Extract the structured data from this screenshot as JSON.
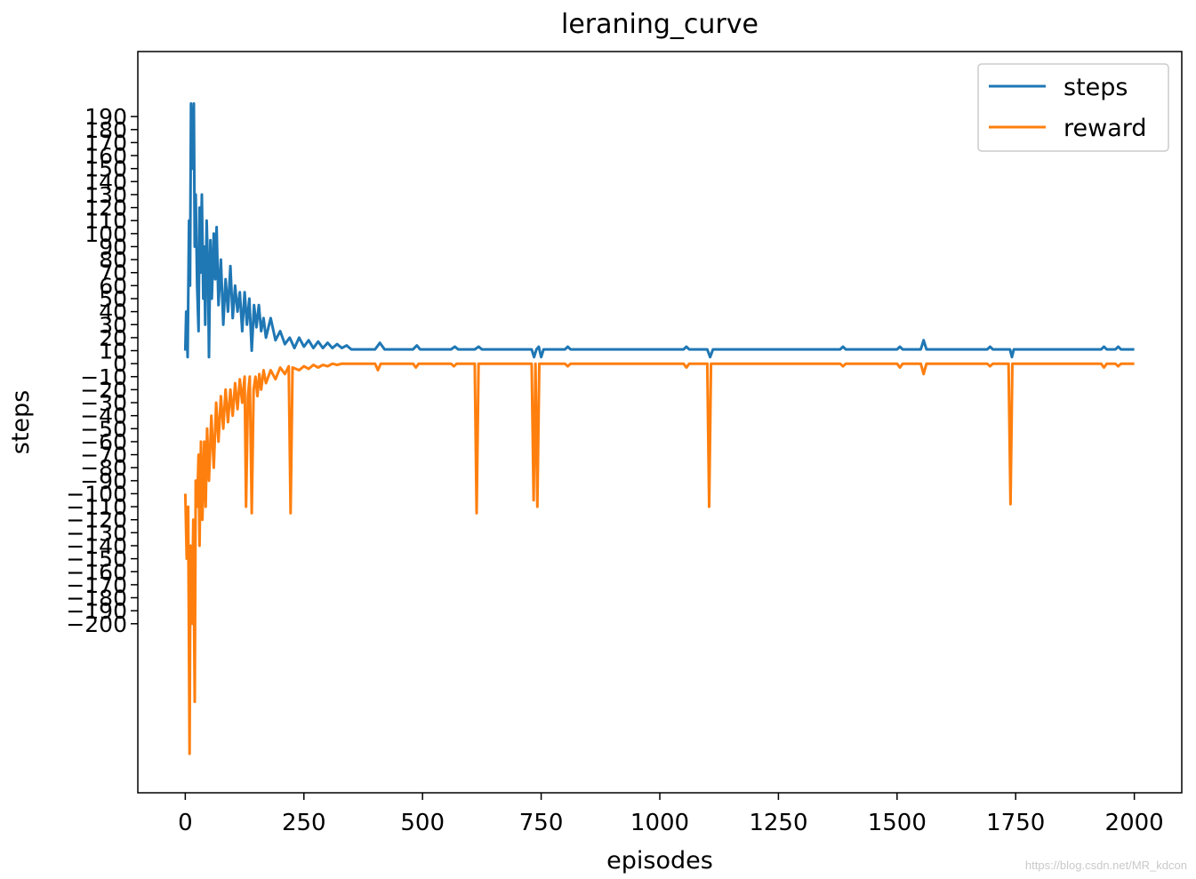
{
  "chart_data": {
    "type": "line",
    "title": "leraning_curve",
    "xlabel": "episodes",
    "ylabel": "steps",
    "xlim": [
      -100,
      2100
    ],
    "ylim": [
      -330,
      240
    ],
    "xticks": [
      0,
      250,
      500,
      750,
      1000,
      1250,
      1500,
      1750,
      2000
    ],
    "xtick_labels": [
      "0",
      "250",
      "500",
      "750",
      "1000",
      "1250",
      "1500",
      "1750",
      "2000"
    ],
    "yticks": [
      190,
      180,
      170,
      160,
      150,
      140,
      130,
      120,
      110,
      100,
      90,
      80,
      70,
      60,
      50,
      40,
      30,
      20,
      10,
      0,
      -10,
      -20,
      -30,
      -40,
      -50,
      -60,
      -70,
      -80,
      -90,
      -100,
      -110,
      -120,
      -130,
      -140,
      -150,
      -160,
      -170,
      -180,
      -190,
      -200
    ],
    "ytick_labels": [
      "190",
      "180",
      "170",
      "160",
      "150",
      "140",
      "130",
      "120",
      "110",
      "100",
      "90",
      "80",
      "70",
      "60",
      "50",
      "40",
      "30",
      "20",
      "10",
      "0",
      "−10",
      "−20",
      "−30",
      "−40",
      "−50",
      "−60",
      "−70",
      "−80",
      "−90",
      "−100",
      "−110",
      "−120",
      "−130",
      "−140",
      "−150",
      "−160",
      "−170",
      "−180",
      "−190",
      "−200"
    ],
    "grid": false,
    "legend_position": "top-right",
    "series": [
      {
        "name": "steps",
        "color": "#1f77b4",
        "points": [
          [
            0,
            10
          ],
          [
            2,
            40
          ],
          [
            5,
            5
          ],
          [
            8,
            110
          ],
          [
            10,
            60
          ],
          [
            12,
            200
          ],
          [
            15,
            150
          ],
          [
            18,
            200
          ],
          [
            20,
            90
          ],
          [
            22,
            130
          ],
          [
            25,
            60
          ],
          [
            28,
            25
          ],
          [
            30,
            120
          ],
          [
            32,
            70
          ],
          [
            35,
            130
          ],
          [
            38,
            50
          ],
          [
            40,
            90
          ],
          [
            42,
            30
          ],
          [
            45,
            110
          ],
          [
            48,
            70
          ],
          [
            50,
            5
          ],
          [
            53,
            95
          ],
          [
            56,
            50
          ],
          [
            60,
            100
          ],
          [
            63,
            65
          ],
          [
            66,
            105
          ],
          [
            70,
            45
          ],
          [
            75,
            80
          ],
          [
            80,
            30
          ],
          [
            85,
            65
          ],
          [
            90,
            40
          ],
          [
            95,
            75
          ],
          [
            100,
            35
          ],
          [
            105,
            60
          ],
          [
            110,
            40
          ],
          [
            115,
            55
          ],
          [
            120,
            25
          ],
          [
            125,
            55
          ],
          [
            130,
            30
          ],
          [
            135,
            50
          ],
          [
            140,
            10
          ],
          [
            145,
            45
          ],
          [
            150,
            28
          ],
          [
            155,
            45
          ],
          [
            160,
            25
          ],
          [
            165,
            35
          ],
          [
            170,
            20
          ],
          [
            180,
            35
          ],
          [
            190,
            18
          ],
          [
            200,
            25
          ],
          [
            210,
            15
          ],
          [
            220,
            20
          ],
          [
            230,
            12
          ],
          [
            240,
            20
          ],
          [
            250,
            13
          ],
          [
            260,
            18
          ],
          [
            270,
            12
          ],
          [
            280,
            17
          ],
          [
            290,
            12
          ],
          [
            300,
            16
          ],
          [
            310,
            12
          ],
          [
            320,
            15
          ],
          [
            330,
            12
          ],
          [
            340,
            14
          ],
          [
            350,
            11
          ],
          [
            380,
            11
          ],
          [
            400,
            11
          ],
          [
            410,
            16
          ],
          [
            420,
            11
          ],
          [
            480,
            11
          ],
          [
            488,
            14
          ],
          [
            495,
            11
          ],
          [
            560,
            11
          ],
          [
            568,
            13
          ],
          [
            575,
            11
          ],
          [
            610,
            11
          ],
          [
            618,
            13
          ],
          [
            625,
            11
          ],
          [
            730,
            11
          ],
          [
            735,
            5
          ],
          [
            740,
            11
          ],
          [
            745,
            13
          ],
          [
            750,
            5
          ],
          [
            755,
            11
          ],
          [
            800,
            11
          ],
          [
            806,
            13
          ],
          [
            812,
            11
          ],
          [
            1050,
            11
          ],
          [
            1056,
            13
          ],
          [
            1062,
            11
          ],
          [
            1100,
            11
          ],
          [
            1106,
            5
          ],
          [
            1112,
            11
          ],
          [
            1380,
            11
          ],
          [
            1386,
            13
          ],
          [
            1392,
            11
          ],
          [
            1500,
            11
          ],
          [
            1506,
            13
          ],
          [
            1512,
            11
          ],
          [
            1550,
            11
          ],
          [
            1556,
            18
          ],
          [
            1562,
            11
          ],
          [
            1690,
            11
          ],
          [
            1696,
            13
          ],
          [
            1702,
            11
          ],
          [
            1738,
            11
          ],
          [
            1742,
            5
          ],
          [
            1746,
            11
          ],
          [
            1930,
            11
          ],
          [
            1936,
            13
          ],
          [
            1942,
            11
          ],
          [
            1960,
            11
          ],
          [
            1966,
            13
          ],
          [
            1972,
            11
          ],
          [
            2000,
            11
          ]
        ]
      },
      {
        "name": "reward",
        "color": "#ff7f0e",
        "points": [
          [
            0,
            -100
          ],
          [
            3,
            -150
          ],
          [
            6,
            -110
          ],
          [
            9,
            -300
          ],
          [
            11,
            -140
          ],
          [
            14,
            -200
          ],
          [
            17,
            -120
          ],
          [
            20,
            -260
          ],
          [
            22,
            -90
          ],
          [
            25,
            -110
          ],
          [
            28,
            -70
          ],
          [
            30,
            -140
          ],
          [
            33,
            -60
          ],
          [
            36,
            -120
          ],
          [
            40,
            -60
          ],
          [
            43,
            -110
          ],
          [
            46,
            -50
          ],
          [
            50,
            -90
          ],
          [
            55,
            -40
          ],
          [
            60,
            -80
          ],
          [
            65,
            -30
          ],
          [
            70,
            -60
          ],
          [
            75,
            -25
          ],
          [
            80,
            -50
          ],
          [
            85,
            -20
          ],
          [
            90,
            -45
          ],
          [
            95,
            -20
          ],
          [
            100,
            -40
          ],
          [
            105,
            -15
          ],
          [
            110,
            -35
          ],
          [
            115,
            -12
          ],
          [
            120,
            -30
          ],
          [
            125,
            -10
          ],
          [
            128,
            -110
          ],
          [
            132,
            -25
          ],
          [
            136,
            -10
          ],
          [
            140,
            -115
          ],
          [
            144,
            -20
          ],
          [
            148,
            -10
          ],
          [
            152,
            -25
          ],
          [
            156,
            -8
          ],
          [
            160,
            -20
          ],
          [
            165,
            -5
          ],
          [
            170,
            -15
          ],
          [
            180,
            -5
          ],
          [
            190,
            -12
          ],
          [
            200,
            -3
          ],
          [
            210,
            -8
          ],
          [
            218,
            -2
          ],
          [
            222,
            -115
          ],
          [
            226,
            -3
          ],
          [
            240,
            -5
          ],
          [
            250,
            -2
          ],
          [
            260,
            -4
          ],
          [
            270,
            -1
          ],
          [
            280,
            -3
          ],
          [
            290,
            -1
          ],
          [
            300,
            -2
          ],
          [
            310,
            0
          ],
          [
            320,
            -1
          ],
          [
            330,
            0
          ],
          [
            340,
            0
          ],
          [
            400,
            0
          ],
          [
            406,
            -5
          ],
          [
            412,
            0
          ],
          [
            480,
            0
          ],
          [
            486,
            -3
          ],
          [
            492,
            0
          ],
          [
            560,
            0
          ],
          [
            566,
            -2
          ],
          [
            572,
            0
          ],
          [
            610,
            0
          ],
          [
            614,
            -115
          ],
          [
            618,
            0
          ],
          [
            730,
            0
          ],
          [
            734,
            -105
          ],
          [
            738,
            0
          ],
          [
            742,
            -110
          ],
          [
            746,
            0
          ],
          [
            800,
            0
          ],
          [
            806,
            -2
          ],
          [
            812,
            0
          ],
          [
            1050,
            0
          ],
          [
            1056,
            -3
          ],
          [
            1062,
            0
          ],
          [
            1100,
            0
          ],
          [
            1104,
            -110
          ],
          [
            1108,
            0
          ],
          [
            1380,
            0
          ],
          [
            1386,
            -2
          ],
          [
            1392,
            0
          ],
          [
            1500,
            0
          ],
          [
            1506,
            -3
          ],
          [
            1512,
            0
          ],
          [
            1550,
            0
          ],
          [
            1556,
            -8
          ],
          [
            1562,
            0
          ],
          [
            1690,
            0
          ],
          [
            1696,
            -2
          ],
          [
            1702,
            0
          ],
          [
            1735,
            0
          ],
          [
            1739,
            -108
          ],
          [
            1743,
            0
          ],
          [
            1930,
            0
          ],
          [
            1936,
            -3
          ],
          [
            1942,
            0
          ],
          [
            1960,
            0
          ],
          [
            1966,
            -2
          ],
          [
            1972,
            0
          ],
          [
            2000,
            0
          ]
        ]
      }
    ]
  },
  "watermark": "https://blog.csdn.net/MR_kdcon"
}
